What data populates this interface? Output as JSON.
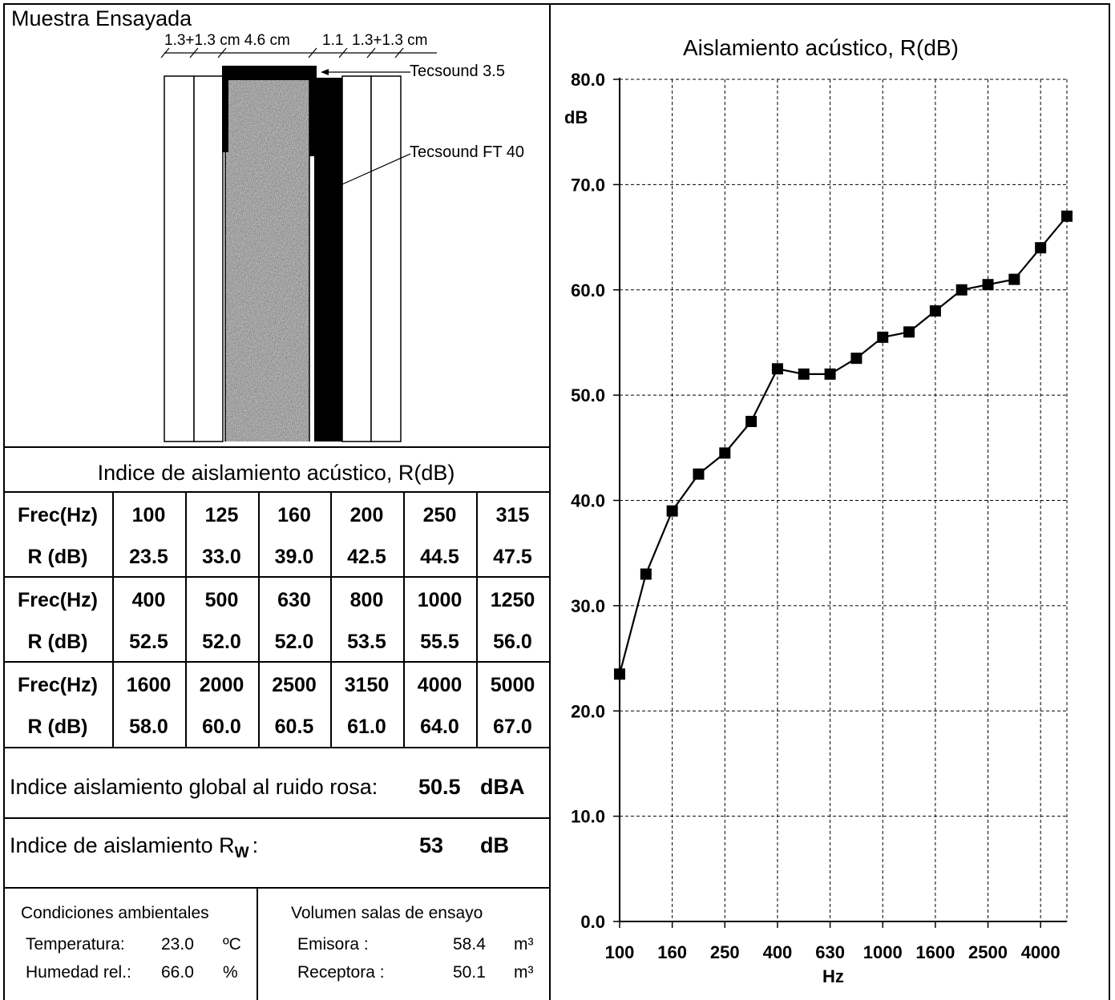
{
  "sample": {
    "title": "Muestra Ensayada",
    "dim_left": "1.3+1.3 cm 4.6 cm",
    "dim_right": "1.1  1.3+1.3 cm",
    "label_top": "Tecsound 3.5",
    "label_side": "Tecsound FT 40"
  },
  "table": {
    "title": "Indice de aislamiento acústico, R(dB)",
    "freq_label": "Frec(Hz)",
    "r_label": "R (dB)",
    "rows": [
      {
        "freq": [
          "100",
          "125",
          "160",
          "200",
          "250",
          "315"
        ],
        "r": [
          "23.5",
          "33.0",
          "39.0",
          "42.5",
          "44.5",
          "47.5"
        ]
      },
      {
        "freq": [
          "400",
          "500",
          "630",
          "800",
          "1000",
          "1250"
        ],
        "r": [
          "52.5",
          "52.0",
          "52.0",
          "53.5",
          "55.5",
          "56.0"
        ]
      },
      {
        "freq": [
          "1600",
          "2000",
          "2500",
          "3150",
          "4000",
          "5000"
        ],
        "r": [
          "58.0",
          "60.0",
          "60.5",
          "61.0",
          "64.0",
          "67.0"
        ]
      }
    ]
  },
  "global": {
    "label": "Indice aislamiento global al ruido rosa:",
    "value": "50.5",
    "unit": "dBA"
  },
  "rw": {
    "label_main": "Indice de aislamiento R",
    "label_sub": "W",
    "label_colon": ":",
    "value": "53",
    "unit": "dB"
  },
  "conditions": {
    "title": "Condiciones ambientales",
    "temp_label": "Temperatura:",
    "temp_value": "23.0",
    "temp_unit": "ºC",
    "hum_label": "Humedad rel.:",
    "hum_value": "66.0",
    "hum_unit": "%"
  },
  "volume": {
    "title": "Volumen salas de ensayo",
    "emisora_label": "Emisora :",
    "emisora_value": "58.4",
    "emisora_unit": "m³",
    "receptora_label": "Receptora :",
    "receptora_value": "50.1",
    "receptora_unit": "m³"
  },
  "chart_data": {
    "type": "line",
    "title": "Aislamiento acústico, R(dB)",
    "ylabel": "dB",
    "xlabel": "Hz",
    "ylim": [
      0,
      80
    ],
    "yticks": [
      "0.0",
      "10.0",
      "20.0",
      "30.0",
      "40.0",
      "50.0",
      "60.0",
      "70.0",
      "80.0"
    ],
    "xtick_labels": [
      "100",
      "160",
      "250",
      "400",
      "630",
      "1000",
      "1600",
      "2500",
      "4000"
    ],
    "x": [
      100,
      125,
      160,
      200,
      250,
      315,
      400,
      500,
      630,
      800,
      1000,
      1250,
      1600,
      2000,
      2500,
      3150,
      4000,
      5000
    ],
    "y": [
      23.5,
      33.0,
      39.0,
      42.5,
      44.5,
      47.5,
      52.5,
      52.0,
      52.0,
      53.5,
      55.5,
      56.0,
      58.0,
      60.0,
      60.5,
      61.0,
      64.0,
      67.0
    ],
    "grid": true,
    "marker": "square"
  }
}
